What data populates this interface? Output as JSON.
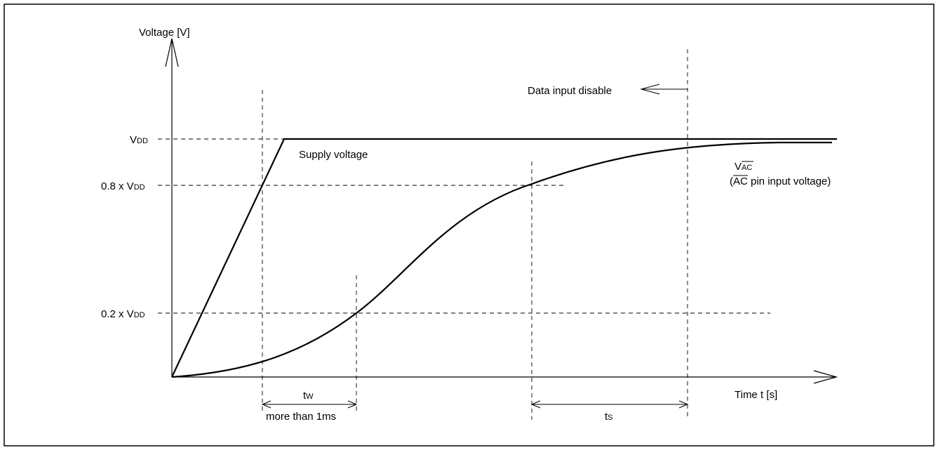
{
  "axes": {
    "y_label": "Voltage [V]",
    "x_label": "Time t [s]"
  },
  "levels": {
    "vdd": {
      "main": "V",
      "sub": "DD"
    },
    "v08": {
      "prefix": "0.8 x V",
      "sub": "DD"
    },
    "v02": {
      "prefix": "0.2 x V",
      "sub": "DD"
    }
  },
  "curves": {
    "supply": "Supply voltage",
    "vac_main": "V",
    "vac_sub": "AC",
    "vac_desc_bar": "AC",
    "vac_desc_rest": " pin input voltage)",
    "vac_desc_open": "("
  },
  "annotations": {
    "data_input_disable": "Data input disable",
    "tw_main": "t",
    "tw_sub": "W",
    "tw_note": "more than 1ms",
    "ts_main": "t",
    "ts_sub": "S"
  }
}
